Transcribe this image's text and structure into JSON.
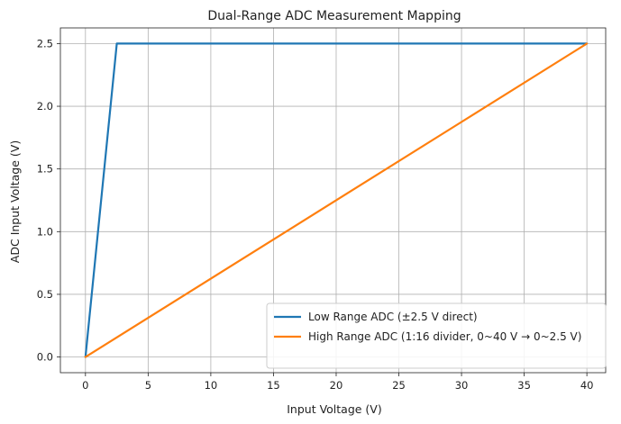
{
  "chart_data": {
    "type": "line",
    "title": "Dual-Range ADC Measurement Mapping",
    "xlabel": "Input Voltage (V)",
    "ylabel": "ADC Input Voltage (V)",
    "xlim": [
      -2,
      41.5
    ],
    "ylim": [
      -0.125,
      2.625
    ],
    "xticks": [
      0,
      5,
      10,
      15,
      20,
      25,
      30,
      35,
      40
    ],
    "yticks": [
      0.0,
      0.5,
      1.0,
      1.5,
      2.0,
      2.5
    ],
    "xtick_labels": [
      "0",
      "5",
      "10",
      "15",
      "20",
      "25",
      "30",
      "35",
      "40"
    ],
    "ytick_labels": [
      "0.0",
      "0.5",
      "1.0",
      "1.5",
      "2.0",
      "2.5"
    ],
    "grid": true,
    "legend_position": "lower-right",
    "series": [
      {
        "name": "Low Range ADC (±2.5 V direct)",
        "color": "#1f77b4",
        "x": [
          0,
          2.5,
          40
        ],
        "y": [
          0,
          2.5,
          2.5
        ]
      },
      {
        "name": "High Range ADC (1:16 divider, 0~40 V → 0~2.5 V)",
        "color": "#ff7f0e",
        "x": [
          0,
          40
        ],
        "y": [
          0,
          2.5
        ]
      }
    ]
  }
}
